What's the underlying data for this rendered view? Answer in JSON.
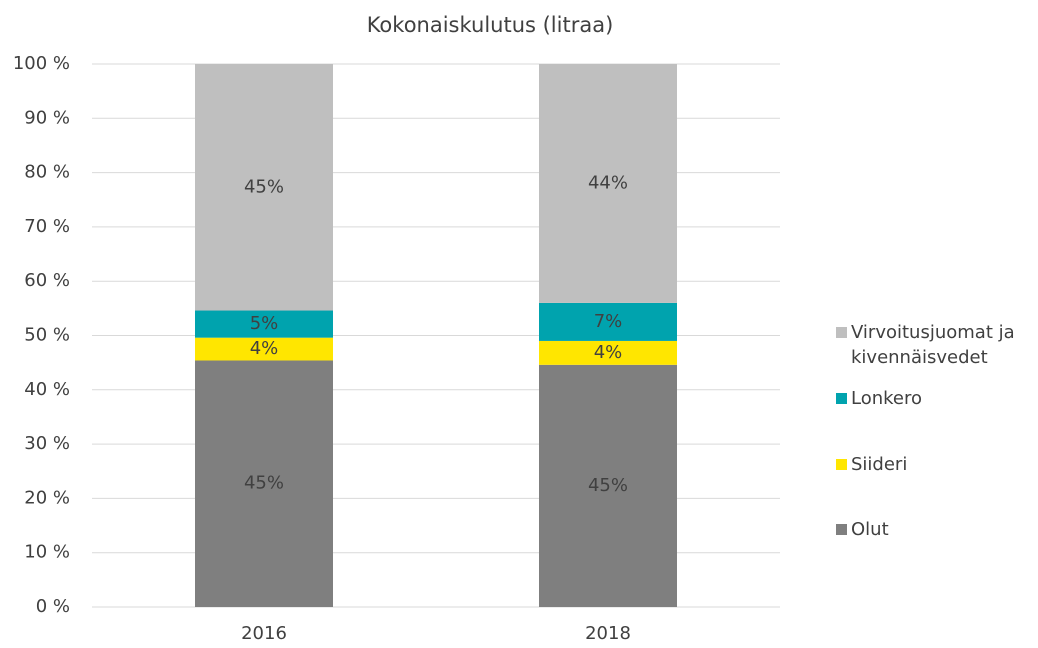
{
  "chart_data": {
    "type": "stacked_bar",
    "title": "Kokonaiskulutus (litraa)",
    "categories": [
      "2016",
      "2018"
    ],
    "series": [
      {
        "name": "Olut",
        "color": "#7f7f7f",
        "values": [
          45.4,
          44.6
        ],
        "value_labels": [
          "45%",
          "45%"
        ]
      },
      {
        "name": "Siideri",
        "color": "#ffe600",
        "values": [
          4.2,
          4.4
        ],
        "value_labels": [
          "4%",
          "4%"
        ]
      },
      {
        "name": "Lonkero",
        "color": "#00a3ae",
        "values": [
          5.0,
          7.0
        ],
        "value_labels": [
          "5%",
          "7%"
        ]
      },
      {
        "name": "Virvoitusjuomat ja kivennäisvedet",
        "color": "#bfbfbf",
        "values": [
          45.4,
          44.0
        ],
        "value_labels": [
          "45%",
          "44%"
        ]
      }
    ],
    "ylim": [
      0,
      100
    ],
    "yticks": [
      {
        "value": 0,
        "label": "0 %"
      },
      {
        "value": 10,
        "label": "10 %"
      },
      {
        "value": 20,
        "label": "20 %"
      },
      {
        "value": 30,
        "label": "30 %"
      },
      {
        "value": 40,
        "label": "40 %"
      },
      {
        "value": 50,
        "label": "50 %"
      },
      {
        "value": 60,
        "label": "60 %"
      },
      {
        "value": 70,
        "label": "70 %"
      },
      {
        "value": 80,
        "label": "80 %"
      },
      {
        "value": 90,
        "label": "90 %"
      },
      {
        "value": 100,
        "label": "100 %"
      }
    ],
    "grid": true,
    "legend": "right"
  }
}
